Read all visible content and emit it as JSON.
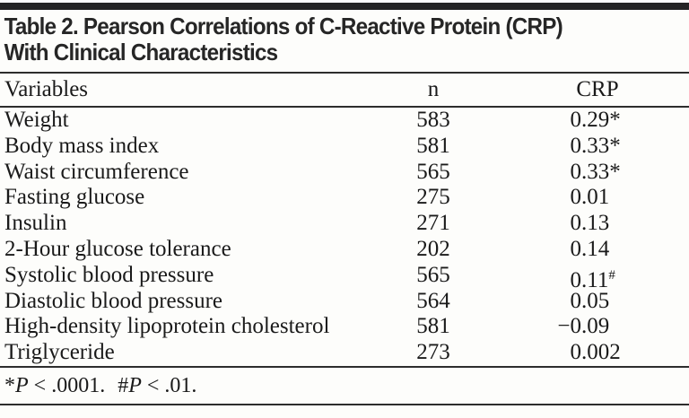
{
  "page": {
    "background": "#fdfdfb",
    "top_bar_color": "#242424",
    "rule_color": "#2d2d2d",
    "title_color": "#262626",
    "text_color": "#1a1a1a"
  },
  "table": {
    "title_line1": "Table 2. Pearson Correlations of C-Reactive Protein (CRP)",
    "title_line2": "With Clinical Characteristics",
    "columns": {
      "variables": "Variables",
      "n": "n",
      "crp": "CRP"
    },
    "rows": [
      {
        "variable": "Weight",
        "n": "583",
        "crp": {
          "pre": "0",
          "post": ".29",
          "sup": "*"
        }
      },
      {
        "variable": "Body mass index",
        "n": "581",
        "crp": {
          "pre": "0",
          "post": ".33",
          "sup": "*"
        }
      },
      {
        "variable": "Waist circumference",
        "n": "565",
        "crp": {
          "pre": "0",
          "post": ".33",
          "sup": "*"
        }
      },
      {
        "variable": "Fasting glucose",
        "n": "275",
        "crp": {
          "pre": "0",
          "post": ".01",
          "sup": ""
        }
      },
      {
        "variable": "Insulin",
        "n": "271",
        "crp": {
          "pre": "0",
          "post": ".13",
          "sup": ""
        }
      },
      {
        "variable": "2-Hour glucose tolerance",
        "n": "202",
        "crp": {
          "pre": "0",
          "post": ".14",
          "sup": ""
        }
      },
      {
        "variable": "Systolic blood pressure",
        "n": "565",
        "crp": {
          "pre": "0",
          "post": ".11",
          "sup": "#"
        }
      },
      {
        "variable": "Diastolic blood pressure",
        "n": "564",
        "crp": {
          "pre": "0",
          "post": ".05",
          "sup": ""
        }
      },
      {
        "variable": "High-density lipoprotein cholesterol",
        "n": "581",
        "crp": {
          "pre": "−0",
          "post": ".09",
          "sup": ""
        }
      },
      {
        "variable": "Triglyceride",
        "n": "273",
        "crp": {
          "pre": "0",
          "post": ".002",
          "sup": ""
        }
      }
    ],
    "footnote": {
      "part1": {
        "marker": "*",
        "p_symbol": "P",
        "rest": " < .0001."
      },
      "part2": {
        "marker": "#",
        "p_symbol": "P",
        "rest": " < .01."
      }
    }
  }
}
